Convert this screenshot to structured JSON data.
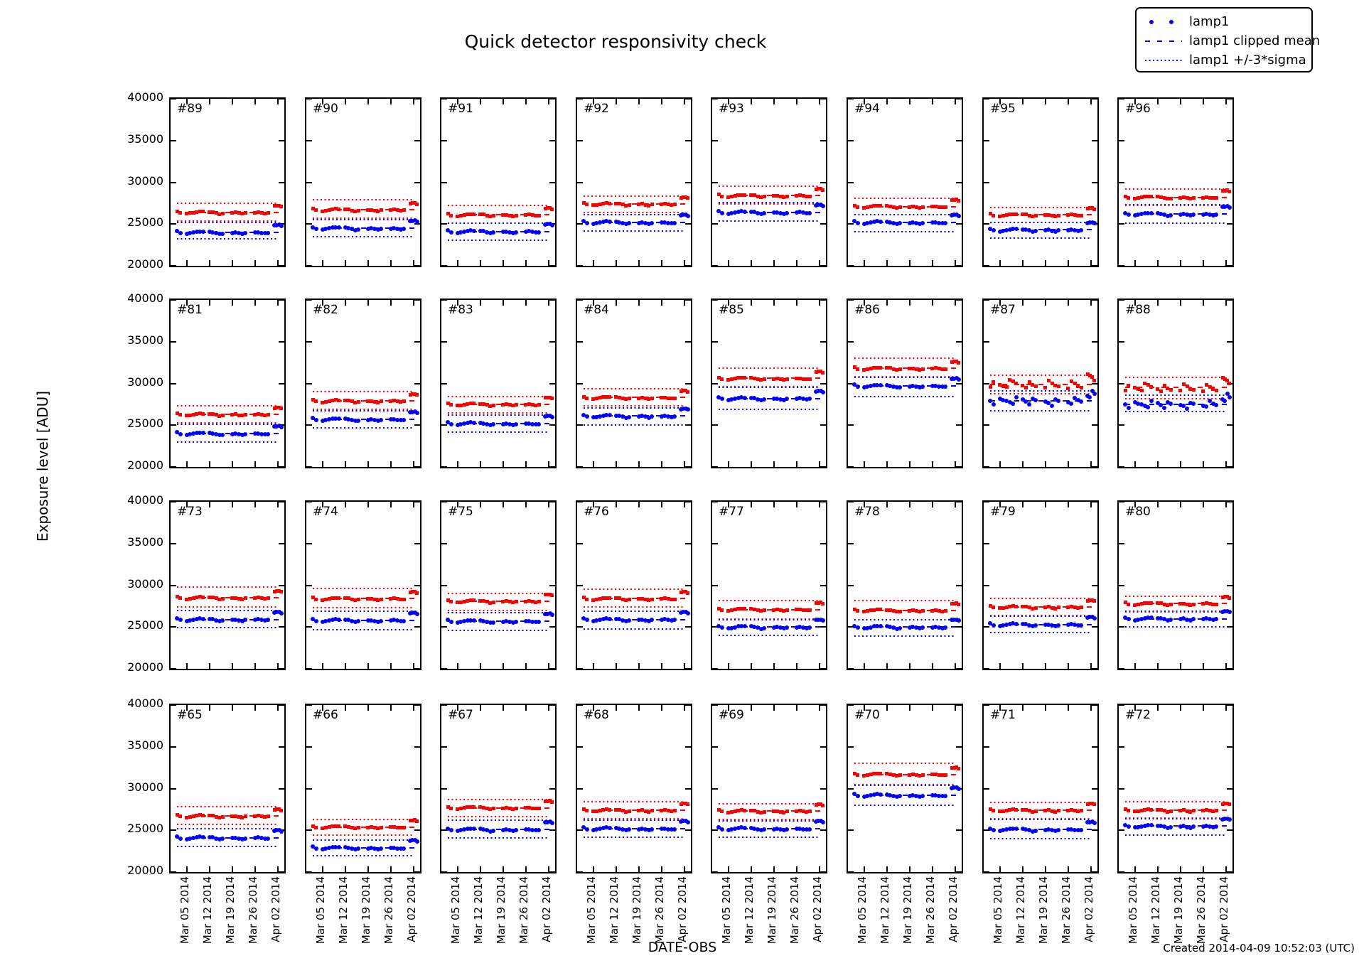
{
  "figure": {
    "title": "Quick detector responsivity check",
    "ylabel": "Exposure level [ADU]",
    "xlabel": "DATE-OBS",
    "created": "Created 2014-04-09 10:52:03 (UTC)"
  },
  "colors": {
    "lamp1": "#0000ff",
    "second_series": "#ff0000"
  },
  "legend": {
    "items": [
      {
        "label": "lamp1",
        "style": "dots"
      },
      {
        "label": "lamp1 clipped mean",
        "style": "dashed"
      },
      {
        "label": "lamp1 +/-3*sigma",
        "style": "dotted"
      }
    ]
  },
  "chart_data": {
    "type": "scatter",
    "title": "Quick detector responsivity check",
    "ylabel": "Exposure level [ADU]",
    "xlabel": "DATE-OBS",
    "grid": {
      "rows": 4,
      "cols": 8
    },
    "y_axis": {
      "min": 20000,
      "max": 40000,
      "ticks": [
        40000,
        35000,
        30000,
        25000,
        20000
      ]
    },
    "x_axis": {
      "min_day": -2,
      "max_day": 33,
      "tick_days": [
        3,
        10,
        17,
        24,
        31
      ],
      "tick_labels": [
        "Mar 05 2014",
        "Mar 12 2014",
        "Mar 19 2014",
        "Mar 26 2014",
        "Apr 02 2014"
      ]
    },
    "sample_days": [
      0,
      1,
      3,
      4,
      5,
      6,
      7,
      8,
      10,
      11,
      12,
      13,
      14,
      17,
      18,
      19,
      20,
      21,
      24,
      25,
      26,
      27,
      28,
      30,
      30.7,
      31.4,
      32.1
    ],
    "profile_offsets": [
      120,
      -60,
      -160,
      -100,
      -20,
      60,
      110,
      80,
      60,
      30,
      -70,
      -190,
      -120,
      -50,
      10,
      -90,
      -170,
      -60,
      -30,
      30,
      -50,
      -110,
      -60,
      760,
      810,
      830,
      700
    ],
    "blue_scale": 1.1,
    "panels": [
      {
        "id": "#89",
        "red": {
          "mean": 26400,
          "upper": 27500,
          "lower": 25400
        },
        "blue": {
          "mean": 24000,
          "upper": 25200,
          "lower": 23200
        },
        "noise": false
      },
      {
        "id": "#90",
        "red": {
          "mean": 26700,
          "upper": 27900,
          "lower": 25700
        },
        "blue": {
          "mean": 24500,
          "upper": 25500,
          "lower": 23500
        },
        "noise": false
      },
      {
        "id": "#91",
        "red": {
          "mean": 26100,
          "upper": 27200,
          "lower": 25100
        },
        "blue": {
          "mean": 24100,
          "upper": 25100,
          "lower": 23100
        },
        "noise": false
      },
      {
        "id": "#92",
        "red": {
          "mean": 27400,
          "upper": 28300,
          "lower": 26400
        },
        "blue": {
          "mean": 25200,
          "upper": 26100,
          "lower": 24200
        },
        "noise": false
      },
      {
        "id": "#93",
        "red": {
          "mean": 28400,
          "upper": 29500,
          "lower": 27400
        },
        "blue": {
          "mean": 26400,
          "upper": 27600,
          "lower": 25400
        },
        "noise": false
      },
      {
        "id": "#94",
        "red": {
          "mean": 27100,
          "upper": 28100,
          "lower": 26100
        },
        "blue": {
          "mean": 25200,
          "upper": 26100,
          "lower": 24100
        },
        "noise": false
      },
      {
        "id": "#95",
        "red": {
          "mean": 26100,
          "upper": 27000,
          "lower": 25200
        },
        "blue": {
          "mean": 24300,
          "upper": 25200,
          "lower": 23300
        },
        "noise": false
      },
      {
        "id": "#96",
        "red": {
          "mean": 28200,
          "upper": 29200,
          "lower": 27200
        },
        "blue": {
          "mean": 26200,
          "upper": 27300,
          "lower": 25100
        },
        "noise": false
      },
      {
        "id": "#81",
        "red": {
          "mean": 26300,
          "upper": 27300,
          "lower": 25300
        },
        "blue": {
          "mean": 24000,
          "upper": 25100,
          "lower": 23000
        },
        "noise": false
      },
      {
        "id": "#82",
        "red": {
          "mean": 27900,
          "upper": 29000,
          "lower": 26900
        },
        "blue": {
          "mean": 25700,
          "upper": 26700,
          "lower": 24700
        },
        "noise": false
      },
      {
        "id": "#83",
        "red": {
          "mean": 27500,
          "upper": 28400,
          "lower": 26500
        },
        "blue": {
          "mean": 25200,
          "upper": 26200,
          "lower": 24200
        },
        "noise": false
      },
      {
        "id": "#84",
        "red": {
          "mean": 28300,
          "upper": 29400,
          "lower": 27300
        },
        "blue": {
          "mean": 26100,
          "upper": 27100,
          "lower": 25000
        },
        "noise": false
      },
      {
        "id": "#85",
        "red": {
          "mean": 30600,
          "upper": 31800,
          "lower": 29600
        },
        "blue": {
          "mean": 28200,
          "upper": 29500,
          "lower": 26900
        },
        "noise": false
      },
      {
        "id": "#86",
        "red": {
          "mean": 31800,
          "upper": 33000,
          "lower": 30800
        },
        "blue": {
          "mean": 29700,
          "upper": 30700,
          "lower": 28400
        },
        "noise": false
      },
      {
        "id": "#87",
        "red": {
          "mean": 29900,
          "upper": 31000,
          "lower": 28800
        },
        "blue": {
          "mean": 27900,
          "upper": 29100,
          "lower": 26700
        },
        "noise": true
      },
      {
        "id": "#88",
        "red": {
          "mean": 29500,
          "upper": 30700,
          "lower": 28200
        },
        "blue": {
          "mean": 27500,
          "upper": 28600,
          "lower": 26600
        },
        "noise": true
      },
      {
        "id": "#73",
        "red": {
          "mean": 28500,
          "upper": 29800,
          "lower": 27400
        },
        "blue": {
          "mean": 25900,
          "upper": 27000,
          "lower": 24900
        },
        "noise": false
      },
      {
        "id": "#74",
        "red": {
          "mean": 28400,
          "upper": 29600,
          "lower": 27300
        },
        "blue": {
          "mean": 25800,
          "upper": 26900,
          "lower": 24700
        },
        "noise": false
      },
      {
        "id": "#75",
        "red": {
          "mean": 28100,
          "upper": 29000,
          "lower": 27000
        },
        "blue": {
          "mean": 25700,
          "upper": 26700,
          "lower": 24600
        },
        "noise": false
      },
      {
        "id": "#76",
        "red": {
          "mean": 28400,
          "upper": 29500,
          "lower": 27400
        },
        "blue": {
          "mean": 25900,
          "upper": 26900,
          "lower": 24800
        },
        "noise": false
      },
      {
        "id": "#77",
        "red": {
          "mean": 27100,
          "upper": 28200,
          "lower": 26000
        },
        "blue": {
          "mean": 25000,
          "upper": 25900,
          "lower": 24000
        },
        "noise": false
      },
      {
        "id": "#78",
        "red": {
          "mean": 27000,
          "upper": 28200,
          "lower": 25900
        },
        "blue": {
          "mean": 25000,
          "upper": 25900,
          "lower": 23900
        },
        "noise": false
      },
      {
        "id": "#79",
        "red": {
          "mean": 27400,
          "upper": 28400,
          "lower": 26400
        },
        "blue": {
          "mean": 25300,
          "upper": 26300,
          "lower": 24300
        },
        "noise": false
      },
      {
        "id": "#80",
        "red": {
          "mean": 27800,
          "upper": 28700,
          "lower": 26800
        },
        "blue": {
          "mean": 26000,
          "upper": 26900,
          "lower": 25000
        },
        "noise": false
      },
      {
        "id": "#65",
        "red": {
          "mean": 26700,
          "upper": 27800,
          "lower": 25700
        },
        "blue": {
          "mean": 24100,
          "upper": 25200,
          "lower": 23100
        },
        "noise": false
      },
      {
        "id": "#66",
        "red": {
          "mean": 25400,
          "upper": 26300,
          "lower": 24400
        },
        "blue": {
          "mean": 22900,
          "upper": 23800,
          "lower": 22000
        },
        "noise": false
      },
      {
        "id": "#67",
        "red": {
          "mean": 27700,
          "upper": 28700,
          "lower": 26600
        },
        "blue": {
          "mean": 25100,
          "upper": 26200,
          "lower": 24100
        },
        "noise": false
      },
      {
        "id": "#68",
        "red": {
          "mean": 27400,
          "upper": 28400,
          "lower": 26400
        },
        "blue": {
          "mean": 25200,
          "upper": 26200,
          "lower": 24200
        },
        "noise": false
      },
      {
        "id": "#69",
        "red": {
          "mean": 27300,
          "upper": 28200,
          "lower": 26300
        },
        "blue": {
          "mean": 25200,
          "upper": 26100,
          "lower": 24200
        },
        "noise": false
      },
      {
        "id": "#70",
        "red": {
          "mean": 31700,
          "upper": 33000,
          "lower": 30500
        },
        "blue": {
          "mean": 29200,
          "upper": 30400,
          "lower": 28000
        },
        "noise": false
      },
      {
        "id": "#71",
        "red": {
          "mean": 27400,
          "upper": 28300,
          "lower": 26400
        },
        "blue": {
          "mean": 25100,
          "upper": 26300,
          "lower": 24000
        },
        "noise": false
      },
      {
        "id": "#72",
        "red": {
          "mean": 27400,
          "upper": 28400,
          "lower": 26500
        },
        "blue": {
          "mean": 25500,
          "upper": 26400,
          "lower": 24400
        },
        "noise": false
      }
    ]
  }
}
